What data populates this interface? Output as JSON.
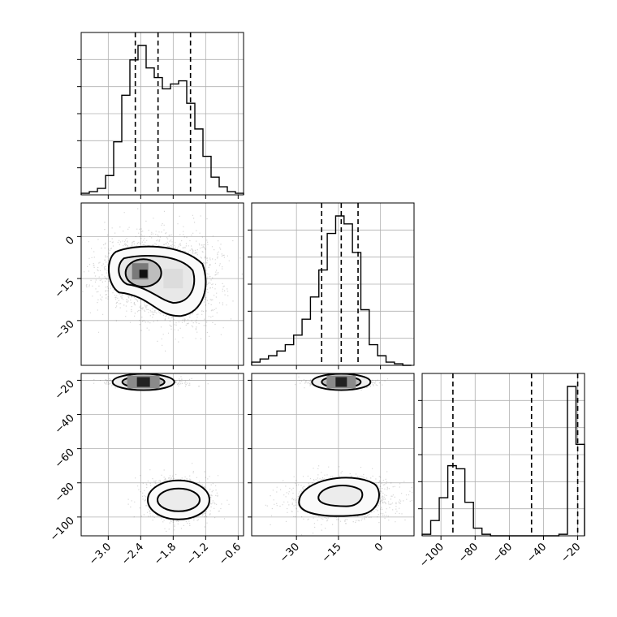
{
  "chart_data": {
    "type": "corner",
    "title": "",
    "parameters": [
      "",
      "",
      ""
    ],
    "grid": true,
    "quantile_style": "dashed-lines",
    "axes": {
      "p1": {
        "range": [
          -3.5,
          -0.5
        ],
        "ticks": [
          -3.0,
          -2.4,
          -1.8,
          -1.2,
          -0.6
        ],
        "tick_labels": [
          "−3.0",
          "−2.4",
          "−1.8",
          "−1.2",
          "−0.6"
        ]
      },
      "p2": {
        "range": [
          -46,
          12
        ],
        "ticks": [
          -30,
          -15,
          0
        ],
        "tick_labels": [
          "−30",
          "−15",
          "0"
        ]
      },
      "p3": {
        "range": [
          -111,
          -16
        ],
        "ticks": [
          -100,
          -80,
          -60,
          -40,
          -20
        ],
        "tick_labels": [
          "−100",
          "−80",
          "−60",
          "−40",
          "−20"
        ]
      }
    },
    "histograms": {
      "p1": {
        "quantiles": [
          -2.5,
          -2.08,
          -1.48
        ],
        "bins": [
          -3.5,
          -3.35,
          -3.2,
          -3.05,
          -2.9,
          -2.75,
          -2.6,
          -2.45,
          -2.3,
          -2.15,
          -2.0,
          -1.85,
          -1.7,
          -1.55,
          -1.4,
          -1.25,
          -1.1,
          -0.95,
          -0.8,
          -0.65,
          -0.5
        ],
        "counts": [
          0.01,
          0.02,
          0.04,
          0.12,
          0.33,
          0.62,
          0.84,
          0.93,
          0.79,
          0.73,
          0.66,
          0.69,
          0.71,
          0.57,
          0.41,
          0.24,
          0.11,
          0.05,
          0.02,
          0.01
        ]
      },
      "p2": {
        "quantiles": [
          -21,
          -14,
          -8
        ],
        "bins": [
          -46,
          -43,
          -40,
          -37,
          -34,
          -31,
          -28,
          -25,
          -22,
          -19,
          -16,
          -13,
          -10,
          -7,
          -4,
          -1,
          2,
          5,
          8,
          11
        ],
        "counts": [
          0.02,
          0.04,
          0.06,
          0.09,
          0.13,
          0.19,
          0.29,
          0.43,
          0.6,
          0.83,
          0.94,
          0.89,
          0.71,
          0.35,
          0.13,
          0.06,
          0.02,
          0.01,
          0.0
        ]
      },
      "p3": {
        "quantiles": [
          -93,
          -47,
          -20
        ],
        "bins": [
          -111,
          -106,
          -101,
          -96,
          -91,
          -86,
          -81,
          -76,
          -71,
          -66,
          -61,
          -56,
          -51,
          -46,
          -41,
          -36,
          -31,
          -26,
          -21,
          -16
        ],
        "counts": [
          0.01,
          0.1,
          0.25,
          0.46,
          0.44,
          0.22,
          0.05,
          0.01,
          0.0,
          0.0,
          0.0,
          0.0,
          0.0,
          0.0,
          0.0,
          0.0,
          0.01,
          0.98,
          0.6
        ]
      }
    },
    "joint": {
      "p1_p2": {
        "modes": [
          {
            "x": -2.35,
            "y": -13,
            "level": "peak"
          },
          {
            "x": -1.8,
            "y": -15,
            "level": "shoulder"
          }
        ]
      },
      "p1_p3": {
        "modes": [
          {
            "x": -2.35,
            "y": -21,
            "level": "peak"
          },
          {
            "x": -1.7,
            "y": -90,
            "level": "broad"
          }
        ]
      },
      "p2_p3": {
        "modes": [
          {
            "x": -14,
            "y": -21,
            "level": "peak"
          },
          {
            "x": -14,
            "y": -88,
            "level": "broad"
          }
        ]
      }
    }
  }
}
